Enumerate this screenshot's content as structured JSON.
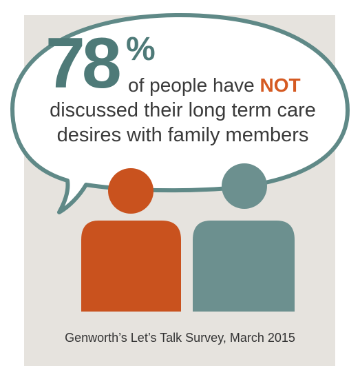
{
  "bubble": {
    "percent_number": "78",
    "percent_sign": "%",
    "line1_before": "of people have ",
    "line1_emphasis": "NOT",
    "line2": "discussed their long term care",
    "line3": "desires with family members"
  },
  "source": "Genworth’s Let’s Talk Survey, March 2015",
  "icons": [
    "speech-bubble-icon",
    "person-icon",
    "person-icon"
  ],
  "colors": {
    "panel": "#e6e3de",
    "bubble_fill": "#ffffff",
    "bubble_outline": "#5f8987",
    "accent_teal": "#4e7a78",
    "accent_orange": "#d55a22",
    "person_left": "#c9521e",
    "person_right": "#6c908f"
  }
}
